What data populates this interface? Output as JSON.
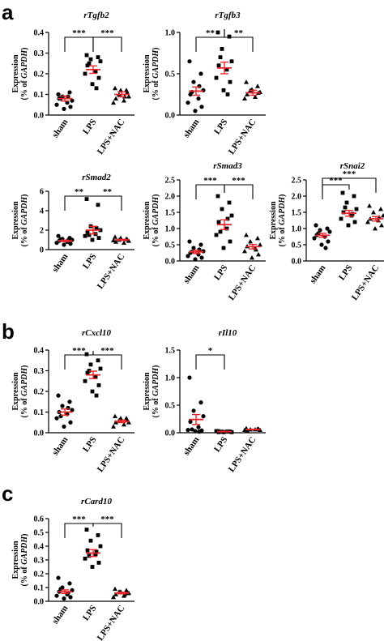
{
  "panels": [
    {
      "letter": "a"
    },
    {
      "letter": "b"
    },
    {
      "letter": "c"
    }
  ],
  "y_axis_label": {
    "line1": "Expression",
    "line2_prefix": "(% of ",
    "line2_italic": "GAPDH",
    "line2_suffix": ")"
  },
  "colors": {
    "mean_sem": "#e8262b",
    "points": "#000000",
    "axis": "#000000"
  },
  "chart_data": [
    {
      "type": "scatter",
      "title": "rTgfb2",
      "categories": [
        "sham",
        "LPS",
        "LPS+NAC"
      ],
      "ylim": [
        0,
        0.4
      ],
      "yticks": [
        0.0,
        0.1,
        0.2,
        0.3,
        0.4
      ],
      "tick_labels": [
        "0.0",
        "0.1",
        "0.2",
        "0.3",
        "0.4"
      ],
      "series": [
        {
          "values": [
            0.1,
            0.11,
            0.09,
            0.07,
            0.08,
            0.06,
            0.05,
            0.04,
            0.03,
            0.09,
            0.08
          ],
          "mean": 0.08,
          "sem": 0.012
        },
        {
          "values": [
            0.29,
            0.28,
            0.27,
            0.26,
            0.24,
            0.21,
            0.2,
            0.18,
            0.15,
            0.13,
            0.25
          ],
          "mean": 0.22,
          "sem": 0.018
        },
        {
          "values": [
            0.13,
            0.12,
            0.1,
            0.09,
            0.08,
            0.07,
            0.06,
            0.11,
            0.12,
            0.09
          ],
          "mean": 0.1,
          "sem": 0.012
        }
      ],
      "significance": [
        {
          "between": [
            0,
            1
          ],
          "label": "***"
        },
        {
          "between": [
            1,
            2
          ],
          "label": "***"
        }
      ]
    },
    {
      "type": "scatter",
      "title": "rTgfb3",
      "categories": [
        "sham",
        "LPS",
        "LPS+NAC"
      ],
      "ylim": [
        0,
        1.0
      ],
      "yticks": [
        0.0,
        0.5,
        1.0
      ],
      "tick_labels": [
        "0.0",
        "0.5",
        "1.0"
      ],
      "series": [
        {
          "values": [
            0.65,
            0.5,
            0.4,
            0.3,
            0.25,
            0.2,
            0.15,
            0.1,
            0.05,
            0.35,
            0.28
          ],
          "mean": 0.29,
          "sem": 0.05
        },
        {
          "values": [
            1.0,
            0.95,
            0.8,
            0.65,
            0.6,
            0.55,
            0.45,
            0.4,
            0.3,
            0.25,
            0.7
          ],
          "mean": 0.57,
          "sem": 0.07
        },
        {
          "values": [
            0.4,
            0.35,
            0.3,
            0.28,
            0.25,
            0.22,
            0.2,
            0.27,
            0.31
          ],
          "mean": 0.27,
          "sem": 0.03
        }
      ],
      "significance": [
        {
          "between": [
            0,
            1
          ],
          "label": "**"
        },
        {
          "between": [
            1,
            2
          ],
          "label": "**"
        }
      ]
    },
    {
      "type": "scatter",
      "title": "rSmad2",
      "categories": [
        "sham",
        "LPS",
        "LPS+NAC"
      ],
      "ylim": [
        0,
        6
      ],
      "yticks": [
        0,
        2,
        4,
        6
      ],
      "tick_labels": [
        "0",
        "2",
        "4",
        "6"
      ],
      "series": [
        {
          "values": [
            1.4,
            1.2,
            1.1,
            1.0,
            0.9,
            0.8,
            0.7,
            0.6,
            0.5,
            0.95,
            1.05
          ],
          "mean": 0.9,
          "sem": 0.08
        },
        {
          "values": [
            5.2,
            4.6,
            2.4,
            2.0,
            1.8,
            1.6,
            1.4,
            1.2,
            1.0,
            2.2,
            1.5
          ],
          "mean": 2.0,
          "sem": 0.4
        },
        {
          "values": [
            1.3,
            1.1,
            1.0,
            0.9,
            0.8,
            0.7,
            0.95,
            1.05,
            1.2
          ],
          "mean": 1.0,
          "sem": 0.06
        }
      ],
      "significance": [
        {
          "between": [
            0,
            1
          ],
          "label": "**"
        },
        {
          "between": [
            1,
            2
          ],
          "label": "**"
        }
      ]
    },
    {
      "type": "scatter",
      "title": "rSmad3",
      "categories": [
        "sham",
        "LPS",
        "LPS+NAC"
      ],
      "ylim": [
        0,
        2.5
      ],
      "yticks": [
        0.0,
        0.5,
        1.0,
        1.5,
        2.0,
        2.5
      ],
      "tick_labels": [
        "0.0",
        "0.5",
        "1.0",
        "1.5",
        "2.0",
        "2.5"
      ],
      "series": [
        {
          "values": [
            0.6,
            0.5,
            0.4,
            0.3,
            0.25,
            0.2,
            0.15,
            0.1,
            0.05,
            0.35,
            0.28
          ],
          "mean": 0.28,
          "sem": 0.05
        },
        {
          "values": [
            2.0,
            1.8,
            1.6,
            1.4,
            1.2,
            1.0,
            0.8,
            0.6,
            0.4,
            1.3,
            0.9
          ],
          "mean": 1.12,
          "sem": 0.15
        },
        {
          "values": [
            0.8,
            0.7,
            0.6,
            0.5,
            0.45,
            0.4,
            0.3,
            0.2,
            0.1,
            0.35
          ],
          "mean": 0.44,
          "sem": 0.07
        }
      ],
      "significance": [
        {
          "between": [
            0,
            1
          ],
          "label": "***"
        },
        {
          "between": [
            1,
            2
          ],
          "label": "***"
        }
      ]
    },
    {
      "type": "scatter",
      "title": "rSnai2",
      "categories": [
        "sham",
        "LPS",
        "LPS+NAC"
      ],
      "ylim": [
        0,
        2.5
      ],
      "yticks": [
        0.0,
        0.5,
        1.0,
        1.5,
        2.0,
        2.5
      ],
      "tick_labels": [
        "0.0",
        "0.5",
        "1.0",
        "1.5",
        "2.0",
        "2.5"
      ],
      "series": [
        {
          "values": [
            1.1,
            1.0,
            0.95,
            0.9,
            0.8,
            0.75,
            0.7,
            0.6,
            0.5,
            0.4,
            0.85
          ],
          "mean": 0.79,
          "sem": 0.06
        },
        {
          "values": [
            2.1,
            2.0,
            1.8,
            1.6,
            1.5,
            1.4,
            1.3,
            1.2,
            1.1,
            1.45,
            1.65
          ],
          "mean": 1.47,
          "sem": 0.09
        },
        {
          "values": [
            1.7,
            1.6,
            1.5,
            1.4,
            1.3,
            1.25,
            1.2,
            1.1,
            1.0,
            1.35
          ],
          "mean": 1.3,
          "sem": 0.07
        }
      ],
      "significance": [
        {
          "between": [
            0,
            1
          ],
          "label": "***"
        },
        {
          "between": [
            0,
            2
          ],
          "label": "***"
        }
      ]
    },
    {
      "type": "scatter",
      "title": "rCxcl10",
      "categories": [
        "sham",
        "LPS",
        "LPS+NAC"
      ],
      "ylim": [
        0,
        0.4
      ],
      "yticks": [
        0.0,
        0.1,
        0.2,
        0.3,
        0.4
      ],
      "tick_labels": [
        "0.0",
        "0.1",
        "0.2",
        "0.3",
        "0.4"
      ],
      "series": [
        {
          "values": [
            0.18,
            0.15,
            0.13,
            0.11,
            0.1,
            0.09,
            0.07,
            0.05,
            0.03,
            0.12,
            0.08
          ],
          "mean": 0.1,
          "sem": 0.015
        },
        {
          "values": [
            0.38,
            0.35,
            0.33,
            0.31,
            0.29,
            0.27,
            0.25,
            0.23,
            0.2,
            0.18,
            0.3
          ],
          "mean": 0.28,
          "sem": 0.018
        },
        {
          "values": [
            0.08,
            0.07,
            0.06,
            0.05,
            0.05,
            0.04,
            0.03,
            0.06,
            0.07
          ],
          "mean": 0.055,
          "sem": 0.006
        }
      ],
      "significance": [
        {
          "between": [
            0,
            1
          ],
          "label": "***"
        },
        {
          "between": [
            1,
            2
          ],
          "label": "***"
        }
      ]
    },
    {
      "type": "scatter",
      "title": "rIl10",
      "categories": [
        "sham",
        "LPS",
        "LPS+NAC"
      ],
      "ylim": [
        0,
        1.5
      ],
      "yticks": [
        0.0,
        0.5,
        1.0,
        1.5
      ],
      "tick_labels": [
        "0.0",
        "0.5",
        "1.0",
        "1.5"
      ],
      "series": [
        {
          "values": [
            1.0,
            0.55,
            0.4,
            0.3,
            0.2,
            0.1,
            0.05,
            0.04,
            0.03,
            0.02,
            0.06
          ],
          "mean": 0.24,
          "sem": 0.09
        },
        {
          "values": [
            0.03,
            0.02,
            0.02,
            0.01,
            0.01,
            0.02,
            0.03,
            0.02,
            0.01,
            0.02
          ],
          "mean": 0.02,
          "sem": 0.004
        },
        {
          "values": [
            0.08,
            0.07,
            0.06,
            0.05,
            0.04,
            0.06,
            0.05,
            0.07
          ],
          "mean": 0.06,
          "sem": 0.005
        }
      ],
      "significance": [
        {
          "between": [
            0,
            1
          ],
          "label": "*"
        }
      ]
    },
    {
      "type": "scatter",
      "title": "rCard10",
      "categories": [
        "sham",
        "LPS",
        "LPS+NAC"
      ],
      "ylim": [
        0,
        0.6
      ],
      "yticks": [
        0.0,
        0.1,
        0.2,
        0.3,
        0.4,
        0.5,
        0.6
      ],
      "tick_labels": [
        "0.0",
        "0.1",
        "0.2",
        "0.3",
        "0.4",
        "0.5",
        "0.6"
      ],
      "series": [
        {
          "values": [
            0.17,
            0.13,
            0.1,
            0.08,
            0.07,
            0.05,
            0.04,
            0.03,
            0.02,
            0.06,
            0.09
          ],
          "mean": 0.07,
          "sem": 0.013
        },
        {
          "values": [
            0.52,
            0.48,
            0.44,
            0.4,
            0.37,
            0.34,
            0.31,
            0.28,
            0.25,
            0.36,
            0.33
          ],
          "mean": 0.35,
          "sem": 0.025
        },
        {
          "values": [
            0.09,
            0.08,
            0.07,
            0.06,
            0.05,
            0.04,
            0.03,
            0.06,
            0.07,
            0.05
          ],
          "mean": 0.06,
          "sem": 0.006
        }
      ],
      "significance": [
        {
          "between": [
            0,
            1
          ],
          "label": "***"
        },
        {
          "between": [
            1,
            2
          ],
          "label": "***"
        }
      ]
    }
  ]
}
